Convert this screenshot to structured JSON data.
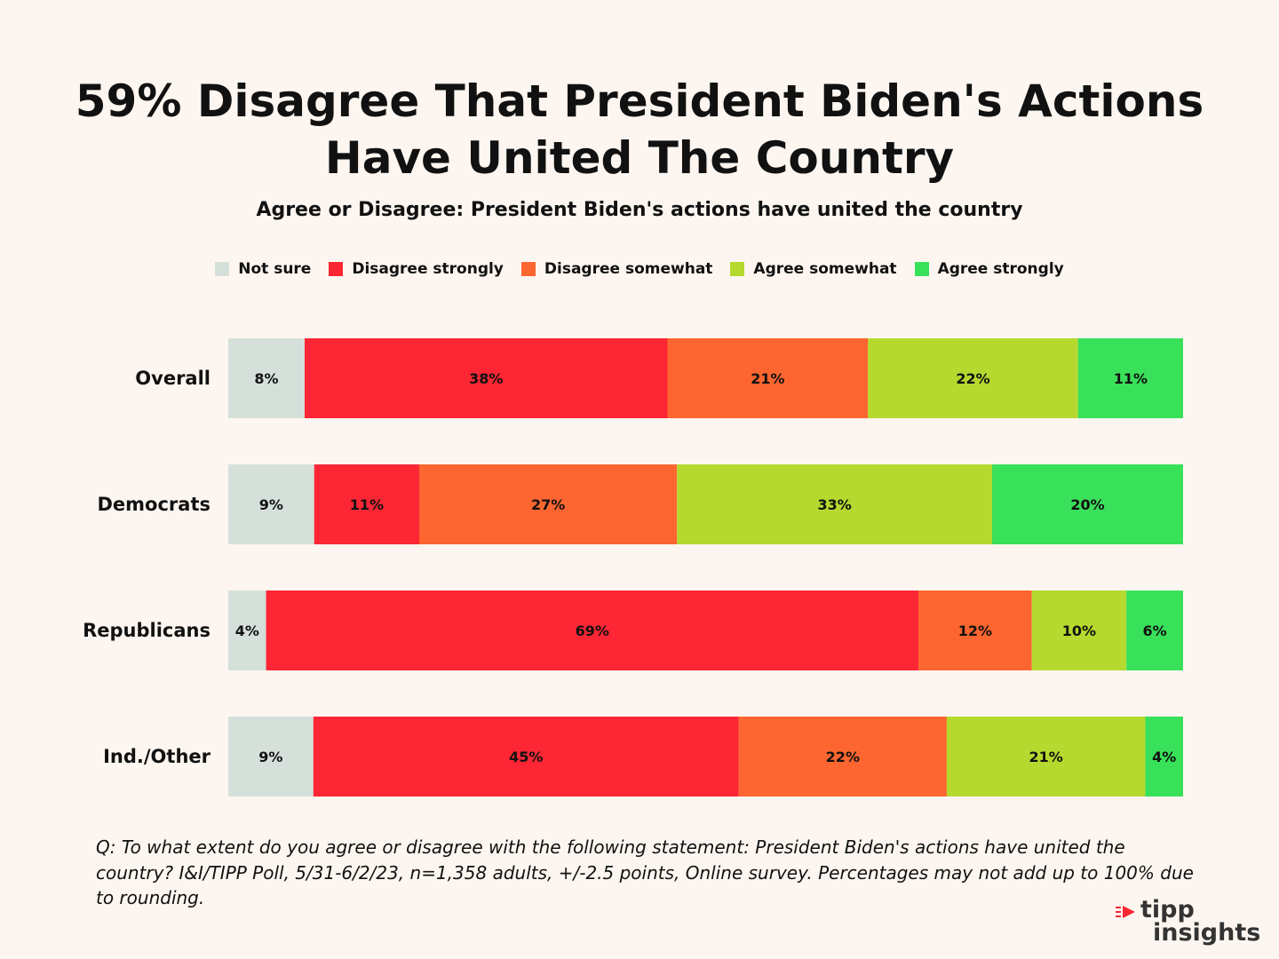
{
  "title_lines": [
    "59% Disagree That President Biden's Actions",
    "Have United The Country"
  ],
  "subtitle": "Agree or Disagree: President Biden's actions have united the country",
  "legend": [
    {
      "label": "Not sure",
      "color": "#d6e0da"
    },
    {
      "label": "Disagree strongly",
      "color": "#fc2634"
    },
    {
      "label": "Disagree somewhat",
      "color": "#fd6630"
    },
    {
      "label": "Agree somewhat",
      "color": "#b5d92e"
    },
    {
      "label": "Agree strongly",
      "color": "#39e05a"
    }
  ],
  "chart_data": {
    "type": "bar",
    "orientation": "horizontal-stacked-100",
    "categories": [
      "Overall",
      "Democrats",
      "Republicans",
      "Ind./Other"
    ],
    "series": [
      {
        "name": "Not sure",
        "color": "#d6e0da",
        "values": [
          8,
          9,
          4,
          9
        ]
      },
      {
        "name": "Disagree strongly",
        "color": "#fc2634",
        "values": [
          38,
          11,
          69,
          45
        ]
      },
      {
        "name": "Disagree somewhat",
        "color": "#fd6630",
        "values": [
          21,
          27,
          12,
          22
        ]
      },
      {
        "name": "Agree somewhat",
        "color": "#b5d92e",
        "values": [
          22,
          33,
          10,
          21
        ]
      },
      {
        "name": "Agree strongly",
        "color": "#39e05a",
        "values": [
          11,
          20,
          6,
          4
        ]
      }
    ],
    "value_suffix": "%",
    "title": "59% Disagree That President Biden's Actions Have United The Country"
  },
  "footnote": "Q: To what extent do you agree or disagree with the following statement: President Biden's actions have united the country?  I&I/TIPP Poll, 5/31-6/2/23, n=1,358 adults, +/-2.5 points, Online survey. Percentages may not add up to 100% due to rounding.",
  "logo": {
    "line1": "tipp",
    "line2": "insights",
    "accent": "#fc2634"
  }
}
